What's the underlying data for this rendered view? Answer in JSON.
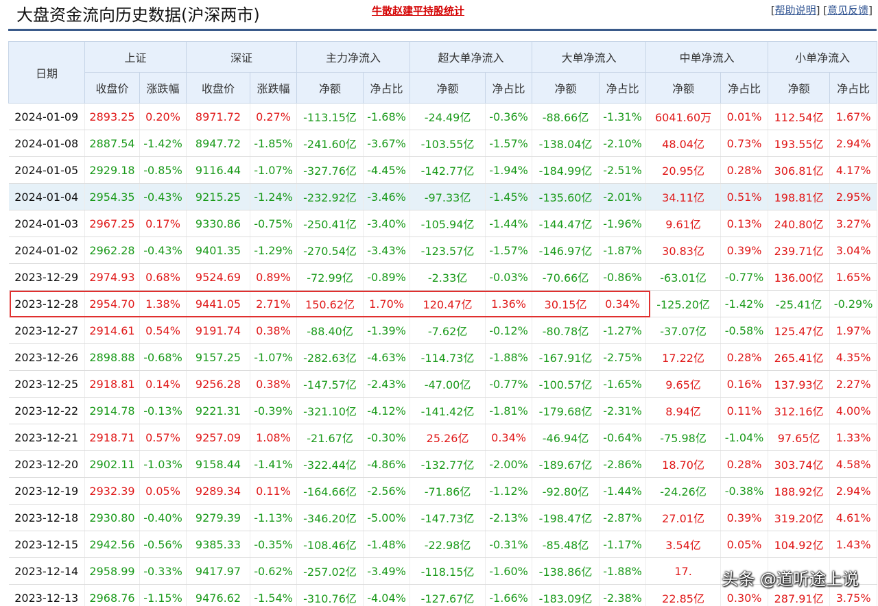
{
  "header": {
    "title": "大盘资金流向历史数据(沪深两市)",
    "promo_link": "牛散赵建平持股统计",
    "help_link": "帮助说明",
    "feedback_link": "意见反馈"
  },
  "colors": {
    "up": "#e01818",
    "down": "#1a9a1a",
    "header_bg": "#e7f0fb",
    "highlight_border": "#e0302f"
  },
  "table": {
    "group_headers": {
      "date": "日期",
      "sh": "上证",
      "sz": "深证",
      "main": "主力净流入",
      "super": "超大单净流入",
      "big": "大单净流入",
      "mid": "中单净流入",
      "small": "小单净流入"
    },
    "sub_headers": [
      "收盘价",
      "涨跌幅",
      "收盘价",
      "涨跌幅",
      "净额",
      "净占比",
      "净额",
      "净占比",
      "净额",
      "净占比",
      "净额",
      "净占比",
      "净额",
      "净占比"
    ],
    "rows": [
      {
        "date": "2024-01-09",
        "cells": [
          "2893.25",
          "0.20%",
          "8971.72",
          "0.27%",
          "-113.15亿",
          "-1.68%",
          "-24.49亿",
          "-0.36%",
          "-88.66亿",
          "-1.31%",
          "6041.60万",
          "0.01%",
          "112.54亿",
          "1.67%"
        ],
        "dirs": [
          1,
          1,
          1,
          1,
          -1,
          -1,
          -1,
          -1,
          -1,
          -1,
          1,
          1,
          1,
          1
        ]
      },
      {
        "date": "2024-01-08",
        "cells": [
          "2887.54",
          "-1.42%",
          "8947.72",
          "-1.85%",
          "-241.60亿",
          "-3.67%",
          "-103.55亿",
          "-1.57%",
          "-138.04亿",
          "-2.10%",
          "48.04亿",
          "0.73%",
          "193.55亿",
          "2.94%"
        ],
        "dirs": [
          -1,
          -1,
          -1,
          -1,
          -1,
          -1,
          -1,
          -1,
          -1,
          -1,
          1,
          1,
          1,
          1
        ]
      },
      {
        "date": "2024-01-05",
        "cells": [
          "2929.18",
          "-0.85%",
          "9116.44",
          "-1.07%",
          "-327.76亿",
          "-4.45%",
          "-142.77亿",
          "-1.94%",
          "-184.99亿",
          "-2.51%",
          "20.95亿",
          "0.28%",
          "306.81亿",
          "4.17%"
        ],
        "dirs": [
          -1,
          -1,
          -1,
          -1,
          -1,
          -1,
          -1,
          -1,
          -1,
          -1,
          1,
          1,
          1,
          1
        ]
      },
      {
        "date": "2024-01-04",
        "cells": [
          "2954.35",
          "-0.43%",
          "9215.25",
          "-1.24%",
          "-232.92亿",
          "-3.46%",
          "-97.33亿",
          "-1.45%",
          "-135.60亿",
          "-2.01%",
          "34.11亿",
          "0.51%",
          "198.81亿",
          "2.95%"
        ],
        "dirs": [
          -1,
          -1,
          -1,
          -1,
          -1,
          -1,
          -1,
          -1,
          -1,
          -1,
          1,
          1,
          1,
          1
        ],
        "highlight": true
      },
      {
        "date": "2024-01-03",
        "cells": [
          "2967.25",
          "0.17%",
          "9330.86",
          "-0.75%",
          "-250.41亿",
          "-3.40%",
          "-105.94亿",
          "-1.44%",
          "-144.47亿",
          "-1.96%",
          "9.61亿",
          "0.13%",
          "240.80亿",
          "3.27%"
        ],
        "dirs": [
          1,
          1,
          -1,
          -1,
          -1,
          -1,
          -1,
          -1,
          -1,
          -1,
          1,
          1,
          1,
          1
        ]
      },
      {
        "date": "2024-01-02",
        "cells": [
          "2962.28",
          "-0.43%",
          "9401.35",
          "-1.29%",
          "-270.54亿",
          "-3.43%",
          "-123.57亿",
          "-1.57%",
          "-146.97亿",
          "-1.87%",
          "30.83亿",
          "0.39%",
          "239.71亿",
          "3.04%"
        ],
        "dirs": [
          -1,
          -1,
          -1,
          -1,
          -1,
          -1,
          -1,
          -1,
          -1,
          -1,
          1,
          1,
          1,
          1
        ]
      },
      {
        "date": "2023-12-29",
        "cells": [
          "2974.93",
          "0.68%",
          "9524.69",
          "0.89%",
          "-72.99亿",
          "-0.89%",
          "-2.33亿",
          "-0.03%",
          "-70.66亿",
          "-0.86%",
          "-63.01亿",
          "-0.77%",
          "136.00亿",
          "1.65%"
        ],
        "dirs": [
          1,
          1,
          1,
          1,
          -1,
          -1,
          -1,
          -1,
          -1,
          -1,
          -1,
          -1,
          1,
          1
        ]
      },
      {
        "date": "2023-12-28",
        "cells": [
          "2954.70",
          "1.38%",
          "9441.05",
          "2.71%",
          "150.62亿",
          "1.70%",
          "120.47亿",
          "1.36%",
          "30.15亿",
          "0.34%",
          "-125.20亿",
          "-1.42%",
          "-25.41亿",
          "-0.29%"
        ],
        "dirs": [
          1,
          1,
          1,
          1,
          1,
          1,
          1,
          1,
          1,
          1,
          -1,
          -1,
          -1,
          -1
        ]
      },
      {
        "date": "2023-12-27",
        "cells": [
          "2914.61",
          "0.54%",
          "9191.74",
          "0.38%",
          "-88.40亿",
          "-1.39%",
          "-7.62亿",
          "-0.12%",
          "-80.78亿",
          "-1.27%",
          "-37.07亿",
          "-0.58%",
          "125.47亿",
          "1.97%"
        ],
        "dirs": [
          1,
          1,
          1,
          1,
          -1,
          -1,
          -1,
          -1,
          -1,
          -1,
          -1,
          -1,
          1,
          1
        ]
      },
      {
        "date": "2023-12-26",
        "cells": [
          "2898.88",
          "-0.68%",
          "9157.25",
          "-1.07%",
          "-282.63亿",
          "-4.63%",
          "-114.73亿",
          "-1.88%",
          "-167.91亿",
          "-2.75%",
          "17.22亿",
          "0.28%",
          "265.41亿",
          "4.35%"
        ],
        "dirs": [
          -1,
          -1,
          -1,
          -1,
          -1,
          -1,
          -1,
          -1,
          -1,
          -1,
          1,
          1,
          1,
          1
        ]
      },
      {
        "date": "2023-12-25",
        "cells": [
          "2918.81",
          "0.14%",
          "9256.28",
          "0.38%",
          "-147.57亿",
          "-2.43%",
          "-47.00亿",
          "-0.77%",
          "-100.57亿",
          "-1.65%",
          "9.65亿",
          "0.16%",
          "137.93亿",
          "2.27%"
        ],
        "dirs": [
          1,
          1,
          1,
          1,
          -1,
          -1,
          -1,
          -1,
          -1,
          -1,
          1,
          1,
          1,
          1
        ]
      },
      {
        "date": "2023-12-22",
        "cells": [
          "2914.78",
          "-0.13%",
          "9221.31",
          "-0.39%",
          "-321.10亿",
          "-4.12%",
          "-141.42亿",
          "-1.81%",
          "-179.68亿",
          "-2.31%",
          "8.94亿",
          "0.11%",
          "312.16亿",
          "4.00%"
        ],
        "dirs": [
          -1,
          -1,
          -1,
          -1,
          -1,
          -1,
          -1,
          -1,
          -1,
          -1,
          1,
          1,
          1,
          1
        ]
      },
      {
        "date": "2023-12-21",
        "cells": [
          "2918.71",
          "0.57%",
          "9257.09",
          "1.08%",
          "-21.67亿",
          "-0.30%",
          "25.26亿",
          "0.34%",
          "-46.94亿",
          "-0.64%",
          "-75.98亿",
          "-1.04%",
          "97.65亿",
          "1.33%"
        ],
        "dirs": [
          1,
          1,
          1,
          1,
          -1,
          -1,
          1,
          1,
          -1,
          -1,
          -1,
          -1,
          1,
          1
        ]
      },
      {
        "date": "2023-12-20",
        "cells": [
          "2902.11",
          "-1.03%",
          "9158.44",
          "-1.41%",
          "-322.44亿",
          "-4.86%",
          "-132.77亿",
          "-2.00%",
          "-189.67亿",
          "-2.86%",
          "18.70亿",
          "0.28%",
          "303.74亿",
          "4.58%"
        ],
        "dirs": [
          -1,
          -1,
          -1,
          -1,
          -1,
          -1,
          -1,
          -1,
          -1,
          -1,
          1,
          1,
          1,
          1
        ]
      },
      {
        "date": "2023-12-19",
        "cells": [
          "2932.39",
          "0.05%",
          "9289.34",
          "0.11%",
          "-164.66亿",
          "-2.56%",
          "-71.86亿",
          "-1.12%",
          "-92.80亿",
          "-1.44%",
          "-24.26亿",
          "-0.38%",
          "188.92亿",
          "2.94%"
        ],
        "dirs": [
          1,
          1,
          1,
          1,
          -1,
          -1,
          -1,
          -1,
          -1,
          -1,
          -1,
          -1,
          1,
          1
        ]
      },
      {
        "date": "2023-12-18",
        "cells": [
          "2930.80",
          "-0.40%",
          "9279.39",
          "-1.13%",
          "-346.20亿",
          "-5.00%",
          "-147.73亿",
          "-2.13%",
          "-198.47亿",
          "-2.87%",
          "27.01亿",
          "0.39%",
          "319.20亿",
          "4.61%"
        ],
        "dirs": [
          -1,
          -1,
          -1,
          -1,
          -1,
          -1,
          -1,
          -1,
          -1,
          -1,
          1,
          1,
          1,
          1
        ]
      },
      {
        "date": "2023-12-15",
        "cells": [
          "2942.56",
          "-0.56%",
          "9385.33",
          "-0.35%",
          "-108.46亿",
          "-1.48%",
          "-22.98亿",
          "-0.31%",
          "-85.48亿",
          "-1.17%",
          "3.54亿",
          "0.05%",
          "104.92亿",
          "1.43%"
        ],
        "dirs": [
          -1,
          -1,
          -1,
          -1,
          -1,
          -1,
          -1,
          -1,
          -1,
          -1,
          1,
          1,
          1,
          1
        ]
      },
      {
        "date": "2023-12-14",
        "cells": [
          "2958.99",
          "-0.33%",
          "9417.97",
          "-0.62%",
          "-257.02亿",
          "-3.49%",
          "-118.15亿",
          "-1.60%",
          "-138.86亿",
          "-1.88%",
          "17.",
          "",
          "",
          ""
        ],
        "dirs": [
          -1,
          -1,
          -1,
          -1,
          -1,
          -1,
          -1,
          -1,
          -1,
          -1,
          1,
          1,
          1,
          1
        ]
      },
      {
        "date": "2023-12-13",
        "cells": [
          "2968.76",
          "-1.15%",
          "9476.62",
          "-1.54%",
          "-310.76亿",
          "-4.04%",
          "-127.67亿",
          "-1.66%",
          "-183.09亿",
          "-2.38%",
          "22.85亿",
          "0.30%",
          "287.91亿",
          "3.75%"
        ],
        "dirs": [
          -1,
          -1,
          -1,
          -1,
          -1,
          -1,
          -1,
          -1,
          -1,
          -1,
          1,
          1,
          1,
          1
        ]
      }
    ]
  },
  "watermark": "头条 @道听途上说"
}
